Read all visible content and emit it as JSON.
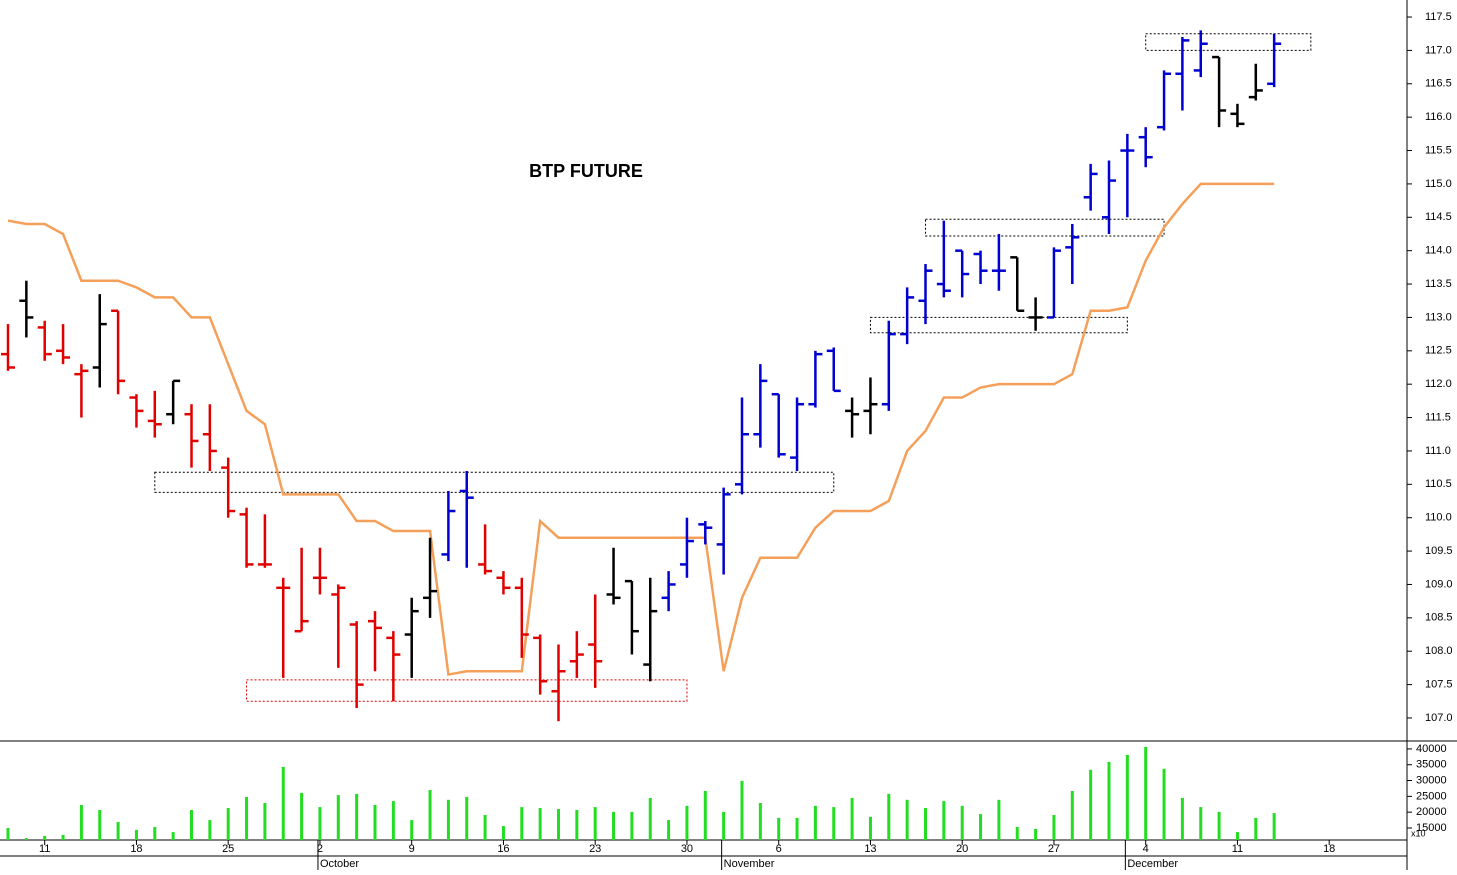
{
  "chart_data": {
    "type": "ohlc",
    "title": "BTP FUTURE",
    "categories": [
      null,
      null,
      "11",
      null,
      null,
      null,
      null,
      "18",
      null,
      null,
      null,
      null,
      "25",
      null,
      null,
      null,
      null,
      "2",
      null,
      null,
      null,
      null,
      "9",
      null,
      null,
      null,
      null,
      "16",
      null,
      null,
      null,
      null,
      "23",
      null,
      null,
      null,
      null,
      "30",
      null,
      null,
      null,
      null,
      "6",
      null,
      null,
      null,
      null,
      "13",
      null,
      null,
      null,
      null,
      "20",
      null,
      null,
      null,
      null,
      "27",
      null,
      null,
      null,
      null,
      "4",
      null,
      null,
      null,
      null,
      "11",
      null,
      null,
      null,
      null,
      "18"
    ],
    "months": [
      {
        "name": "October",
        "index": 17
      },
      {
        "name": "November",
        "index": 39
      },
      {
        "name": "December",
        "index": 61
      }
    ],
    "open": [
      112.45,
      113.25,
      112.85,
      112.5,
      112.15,
      112.25,
      113.1,
      111.8,
      111.45,
      111.55,
      111.55,
      111.25,
      110.75,
      110.05,
      109.3,
      108.95,
      108.3,
      109.1,
      108.85,
      108.4,
      108.45,
      108.2,
      108.25,
      108.8,
      109.45,
      110.4,
      109.3,
      109.1,
      108.95,
      108.2,
      107.4,
      107.85,
      108.1,
      108.85,
      109.05,
      107.8,
      108.8,
      109.3,
      109.9,
      109.6,
      110.5,
      111.25,
      111.85,
      110.9,
      111.7,
      112.5,
      111.6,
      111.6,
      111.7,
      112.75,
      113.25,
      113.5,
      114.0,
      113.95,
      113.7,
      113.9,
      113.0,
      113.0,
      114.05,
      114.8,
      114.5,
      115.5,
      115.7,
      115.85,
      116.65,
      116.7,
      116.9,
      116.05,
      116.3,
      116.5,
      null,
      null,
      null
    ],
    "high": [
      112.9,
      113.55,
      112.95,
      112.9,
      112.3,
      113.35,
      113.1,
      111.85,
      111.9,
      112.05,
      111.7,
      111.7,
      110.9,
      110.15,
      110.05,
      109.1,
      109.55,
      109.55,
      109.0,
      108.45,
      108.6,
      108.3,
      108.8,
      109.7,
      110.4,
      110.7,
      109.9,
      109.2,
      109.1,
      108.25,
      108.1,
      108.3,
      108.85,
      109.55,
      109.05,
      109.1,
      109.2,
      110.0,
      109.95,
      110.45,
      111.8,
      112.3,
      111.85,
      111.8,
      112.5,
      112.55,
      111.8,
      112.1,
      112.95,
      113.45,
      113.8,
      114.45,
      114.0,
      114.0,
      114.25,
      113.9,
      113.3,
      114.05,
      114.4,
      115.3,
      115.35,
      115.75,
      115.85,
      116.7,
      117.2,
      117.3,
      116.9,
      116.2,
      116.8,
      117.25,
      null,
      null,
      null
    ],
    "low": [
      112.2,
      112.7,
      112.35,
      112.3,
      111.5,
      111.95,
      111.85,
      111.35,
      111.2,
      111.4,
      110.75,
      110.7,
      110.0,
      109.25,
      109.25,
      107.6,
      108.3,
      108.85,
      107.75,
      107.15,
      107.7,
      107.25,
      107.6,
      108.5,
      109.35,
      109.25,
      109.15,
      108.85,
      107.9,
      107.35,
      106.95,
      107.6,
      107.45,
      108.7,
      107.95,
      107.55,
      108.6,
      109.1,
      109.6,
      109.15,
      110.35,
      111.05,
      110.9,
      110.7,
      111.65,
      111.9,
      111.2,
      111.25,
      111.6,
      112.6,
      112.9,
      113.3,
      113.3,
      113.5,
      113.4,
      113.1,
      112.8,
      113.0,
      113.5,
      114.6,
      114.25,
      114.5,
      115.25,
      115.8,
      116.1,
      116.6,
      115.85,
      115.85,
      116.25,
      116.45,
      null,
      null,
      null
    ],
    "close": [
      112.25,
      113.0,
      112.45,
      112.4,
      112.2,
      112.9,
      112.05,
      111.6,
      111.4,
      112.05,
      111.15,
      111.0,
      110.1,
      109.3,
      109.3,
      108.95,
      108.45,
      109.1,
      108.95,
      107.5,
      108.35,
      107.95,
      108.6,
      108.9,
      110.1,
      110.3,
      109.2,
      108.95,
      108.25,
      107.55,
      107.7,
      107.95,
      107.85,
      108.8,
      108.3,
      108.6,
      109.0,
      109.65,
      109.85,
      110.35,
      111.25,
      112.05,
      110.95,
      111.7,
      112.45,
      111.9,
      111.55,
      111.7,
      112.75,
      113.3,
      113.7,
      113.4,
      113.65,
      113.7,
      113.7,
      113.1,
      113.0,
      114.0,
      114.2,
      115.15,
      115.05,
      115.5,
      115.4,
      116.65,
      117.15,
      117.1,
      116.1,
      115.9,
      116.4,
      117.1,
      null,
      null,
      null
    ],
    "bar_colors": [
      "#e00000",
      "#000000",
      "#e00000",
      "#e00000",
      "#e00000",
      "#000000",
      "#e00000",
      "#e00000",
      "#e00000",
      "#000000",
      "#e00000",
      "#e00000",
      "#e00000",
      "#e00000",
      "#e00000",
      "#e00000",
      "#e00000",
      "#e00000",
      "#e00000",
      "#e00000",
      "#e00000",
      "#e00000",
      "#000000",
      "#000000",
      "#0000d0",
      "#0000d0",
      "#e00000",
      "#e00000",
      "#e00000",
      "#e00000",
      "#e00000",
      "#e00000",
      "#e00000",
      "#000000",
      "#000000",
      "#000000",
      "#0000d0",
      "#0000d0",
      "#0000d0",
      "#0000d0",
      "#0000d0",
      "#0000d0",
      "#0000d0",
      "#0000d0",
      "#0000d0",
      "#0000d0",
      "#000000",
      "#000000",
      "#0000d0",
      "#0000d0",
      "#0000d0",
      "#0000d0",
      "#0000d0",
      "#0000d0",
      "#0000d0",
      "#000000",
      "#000000",
      "#0000d0",
      "#0000d0",
      "#0000d0",
      "#0000d0",
      "#0000d0",
      "#0000d0",
      "#0000d0",
      "#0000d0",
      "#0000d0",
      "#000000",
      "#000000",
      "#000000",
      "#0000d0",
      null,
      null,
      null
    ],
    "stop_line": {
      "color": "#f5a05a",
      "values": [
        114.45,
        114.4,
        114.4,
        114.25,
        113.55,
        113.55,
        113.55,
        113.45,
        113.3,
        113.3,
        113.0,
        113.0,
        112.3,
        111.6,
        111.4,
        110.35,
        110.35,
        110.35,
        110.35,
        109.95,
        109.95,
        109.8,
        109.8,
        109.8,
        107.65,
        107.7,
        107.7,
        107.7,
        107.7,
        109.95,
        109.7,
        109.7,
        109.7,
        109.7,
        109.7,
        109.7,
        109.7,
        109.7,
        109.7,
        107.7,
        108.8,
        109.4,
        109.4,
        109.4,
        109.85,
        110.1,
        110.1,
        110.1,
        110.25,
        111.0,
        111.3,
        111.8,
        111.8,
        111.95,
        112.0,
        112.0,
        112.0,
        112.0,
        112.15,
        113.1,
        113.1,
        113.15,
        113.85,
        114.35,
        114.7,
        115.0,
        115.0,
        115.0,
        115.0,
        115.0,
        null,
        null,
        null
      ]
    },
    "zones": [
      {
        "start": 8,
        "end": 45,
        "low": 110.38,
        "high": 110.68,
        "color": "#000000"
      },
      {
        "start": 13,
        "end": 37,
        "low": 107.25,
        "high": 107.57,
        "color": "#e00000"
      },
      {
        "start": 50,
        "end": 63,
        "low": 114.22,
        "high": 114.47,
        "color": "#000000"
      },
      {
        "start": 47,
        "end": 61,
        "low": 112.77,
        "high": 113.0,
        "color": "#000000"
      },
      {
        "start": 62,
        "end": 71,
        "low": 117.0,
        "high": 117.25,
        "color": "#000000"
      }
    ],
    "ylim": [
      106.67,
      117.755
    ],
    "yticks": [
      {
        "value": 107,
        "label": "107.0"
      },
      107.5,
      {
        "value": 108,
        "label": "108.0"
      },
      108.5,
      {
        "value": 109,
        "label": "109.0"
      },
      109.5,
      {
        "value": 110,
        "label": "110.0"
      },
      110.5,
      {
        "value": 111,
        "label": "111.0"
      },
      111.5,
      {
        "value": 112,
        "label": "112.0"
      },
      112.5,
      {
        "value": 113,
        "label": "113.0"
      },
      113.5,
      {
        "value": 114,
        "label": "114.0"
      },
      114.5,
      {
        "value": 115,
        "label": "115.0"
      },
      115.5,
      {
        "value": 116,
        "label": "116.0"
      },
      116.5,
      {
        "value": 117,
        "label": "117.0"
      },
      117.5
    ],
    "volume": {
      "color": "#22dd22",
      "multiplier_label": "x10",
      "ylim": [
        11200,
        42500
      ],
      "yticks": [
        15000,
        20000,
        25000,
        30000,
        35000,
        40000
      ],
      "values": [
        15000,
        11800,
        12500,
        12800,
        22300,
        20700,
        16900,
        14400,
        15300,
        13700,
        20700,
        17500,
        21300,
        24800,
        22900,
        34300,
        26100,
        21600,
        25400,
        25800,
        22300,
        23500,
        17500,
        27000,
        23900,
        24800,
        19100,
        15600,
        21600,
        21300,
        21000,
        20700,
        21600,
        20100,
        20100,
        24500,
        17500,
        22000,
        26700,
        20100,
        29900,
        22900,
        18200,
        18200,
        22000,
        21600,
        24500,
        18500,
        25800,
        23900,
        21300,
        23500,
        22000,
        19400,
        23900,
        15300,
        14700,
        19100,
        26700,
        33400,
        35900,
        38100,
        40600,
        33700,
        24500,
        21600,
        20100,
        13700,
        18200,
        19700,
        null,
        null,
        null
      ]
    }
  }
}
